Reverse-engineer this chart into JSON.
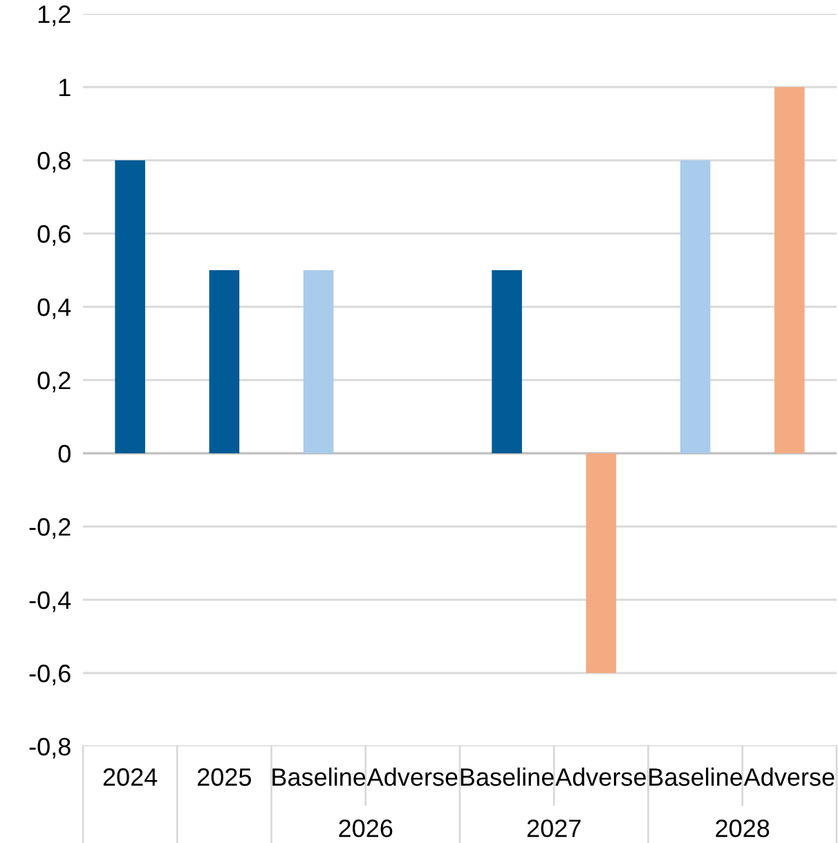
{
  "chart_data": {
    "type": "bar",
    "categories": [
      "2024",
      "2025",
      "Baseline",
      "Adverse",
      "Baseline",
      "Adverse",
      "Baseline",
      "Adverse"
    ],
    "values": [
      0.8,
      0.5,
      0.5,
      null,
      0.5,
      -0.6,
      0.8,
      1.0
    ],
    "colors": [
      "#005b96",
      "#005b96",
      "#a9cbec",
      "#a9cbec",
      "#005b96",
      "#f4ab82",
      "#a9cbec",
      "#f4ab82"
    ],
    "annotations": [
      "2026",
      "2027",
      "2028"
    ],
    "ylim": [
      -0.8,
      1.2
    ],
    "yticks": [
      {
        "value": -0.8,
        "label": "-0,8"
      },
      {
        "value": -0.6,
        "label": "-0,6"
      },
      {
        "value": -0.4,
        "label": "-0,4"
      },
      {
        "value": -0.2,
        "label": "-0,2"
      },
      0,
      {
        "value": 0.2,
        "label": "0,2"
      },
      {
        "value": 0.4,
        "label": "0,4"
      },
      {
        "value": 0.6,
        "label": "0,6"
      },
      {
        "value": 0.8,
        "label": "0,8"
      },
      1,
      {
        "value": 1.2,
        "label": "1,2"
      }
    ],
    "grid": "y"
  }
}
